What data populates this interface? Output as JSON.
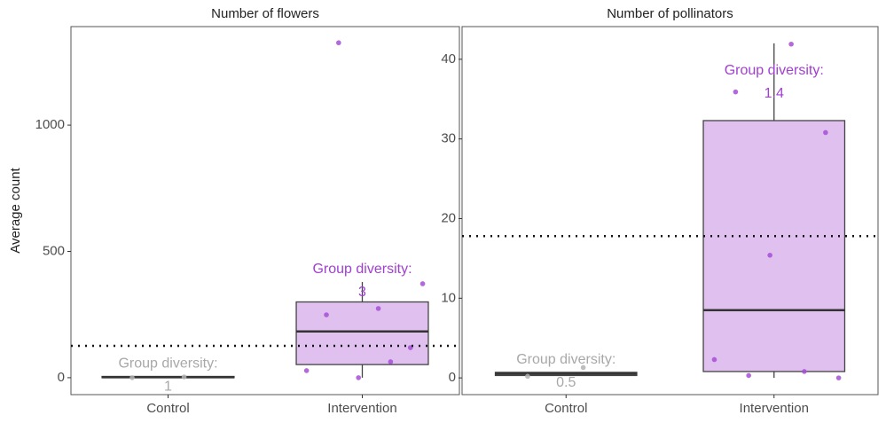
{
  "chart_data": [
    {
      "type": "box",
      "title": "Number of flowers",
      "ylabel": "Average count",
      "categories": [
        "Control",
        "Intervention"
      ],
      "ylim": [
        -67,
        1390
      ],
      "yticks": [
        0,
        500,
        1000
      ],
      "boxes": [
        {
          "min": 0,
          "q1": 0,
          "median": 2,
          "q3": 5,
          "max": 5
        },
        {
          "min": 0,
          "q1": 52,
          "median": 183,
          "q3": 300,
          "max": 379
        }
      ],
      "points": [
        [
          3,
          0
        ],
        [
          274,
          249,
          119,
          0,
          28,
          63,
          1326,
          372
        ]
      ],
      "colors": [
        "#b3b3b3",
        "#a64fd6"
      ],
      "box_fills": [
        "#e0e0e0",
        "#dfc0ef"
      ],
      "label_colors": [
        "#a8a8a8",
        "#a040d0"
      ],
      "annotation_label": "Group diversity:",
      "diversity": [
        1,
        3
      ],
      "reference_line": 126
    },
    {
      "type": "box",
      "title": "Number of pollinators",
      "categories": [
        "Control",
        "Intervention"
      ],
      "ylim": [
        -2.1,
        44.1
      ],
      "yticks": [
        0,
        10,
        20,
        30,
        40
      ],
      "boxes": [
        {
          "min": 0.3,
          "q1": 0.3,
          "median": 0.5,
          "q3": 0.7,
          "max": 0.7
        },
        {
          "min": 0,
          "q1": 0.8,
          "median": 8.5,
          "q3": 32.3,
          "max": 42
        }
      ],
      "points": [
        [
          1.3,
          0.2
        ],
        [
          41.9,
          35.9,
          30.8,
          15.4,
          2.3,
          0.8,
          0.3,
          0
        ]
      ],
      "colors": [
        "#b3b3b3",
        "#a64fd6"
      ],
      "box_fills": [
        "#e0e0e0",
        "#dfc0ef"
      ],
      "label_colors": [
        "#a8a8a8",
        "#a040d0"
      ],
      "annotation_label": "Group diversity:",
      "diversity": [
        0.5,
        1.4
      ],
      "reference_line": 17.8
    }
  ]
}
